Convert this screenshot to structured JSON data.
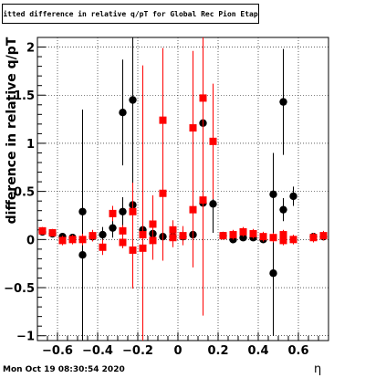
{
  "chart_data": {
    "type": "scatter",
    "title": "Fitted difference in relative q/pT for Global Rec Pion EtapT",
    "xlabel": "η",
    "ylabel": "difference in relative q/pT",
    "xlim": [
      -0.7,
      0.75
    ],
    "ylim": [
      -1.05,
      2.1
    ],
    "x_ticks": [
      -0.6,
      -0.4,
      -0.2,
      0,
      0.2,
      0.4,
      0.6
    ],
    "x_tick_labels": [
      "−0.6",
      "−0.4",
      "−0.2",
      "0",
      "0.2",
      "0.4",
      "0.6"
    ],
    "y_ticks": [
      -1,
      -0.5,
      0,
      0.5,
      1,
      1.5,
      2
    ],
    "y_tick_labels": [
      "−1",
      "−0.5",
      "0",
      "0.5",
      "1",
      "1.5",
      "2"
    ],
    "grid": true,
    "series": [
      {
        "color": "#000000",
        "marker": "circle",
        "points": [
          {
            "x": -0.675,
            "y": 0.08,
            "err": 0.03
          },
          {
            "x": -0.625,
            "y": 0.06,
            "err": 0.03
          },
          {
            "x": -0.575,
            "y": 0.03,
            "err": 0.03
          },
          {
            "x": -0.525,
            "y": 0.02,
            "err": 0.03
          },
          {
            "x": -0.475,
            "y": 0.29,
            "err": 1.06
          },
          {
            "x": -0.475,
            "y": -0.16,
            "err": 0.95
          },
          {
            "x": -0.425,
            "y": 0.03,
            "err": 0.05
          },
          {
            "x": -0.375,
            "y": 0.05,
            "err": 0.08
          },
          {
            "x": -0.325,
            "y": 0.12,
            "err": 0.1
          },
          {
            "x": -0.275,
            "y": 1.32,
            "err": 0.55
          },
          {
            "x": -0.275,
            "y": 0.29,
            "err": 0.15
          },
          {
            "x": -0.225,
            "y": 1.45,
            "err": 0.9
          },
          {
            "x": -0.225,
            "y": 0.36,
            "err": 0.3
          },
          {
            "x": -0.175,
            "y": 0.1,
            "err": 0.1
          },
          {
            "x": -0.125,
            "y": 0.06,
            "err": 0.05
          },
          {
            "x": -0.075,
            "y": 0.03,
            "err": 0.03
          },
          {
            "x": -0.025,
            "y": 0.03,
            "err": 0.04
          },
          {
            "x": 0.025,
            "y": 0.03,
            "err": 0.04
          },
          {
            "x": 0.075,
            "y": 0.05,
            "err": 0.05
          },
          {
            "x": 0.125,
            "y": 1.21,
            "err": 0.25
          },
          {
            "x": 0.125,
            "y": 0.38,
            "err": 0.35
          },
          {
            "x": 0.175,
            "y": 0.37,
            "err": 0.3
          },
          {
            "x": 0.225,
            "y": 0.04,
            "err": 0.03
          },
          {
            "x": 0.275,
            "y": 0.0,
            "err": 0.03
          },
          {
            "x": 0.325,
            "y": 0.02,
            "err": 0.03
          },
          {
            "x": 0.375,
            "y": 0.02,
            "err": 0.03
          },
          {
            "x": 0.425,
            "y": 0.0,
            "err": 0.03
          },
          {
            "x": 0.475,
            "y": 0.47,
            "err": 0.43
          },
          {
            "x": 0.475,
            "y": -0.35,
            "err": 0.65
          },
          {
            "x": 0.525,
            "y": 1.43,
            "err": 0.55
          },
          {
            "x": 0.525,
            "y": 0.31,
            "err": 0.12
          },
          {
            "x": 0.575,
            "y": 0.45,
            "err": 0.1
          },
          {
            "x": 0.675,
            "y": 0.03,
            "err": 0.03
          },
          {
            "x": 0.725,
            "y": 0.03,
            "err": 0.03
          }
        ]
      },
      {
        "color": "#ff0000",
        "marker": "square",
        "points": [
          {
            "x": -0.675,
            "y": 0.09,
            "err": 0.04
          },
          {
            "x": -0.625,
            "y": 0.07,
            "err": 0.04
          },
          {
            "x": -0.575,
            "y": -0.01,
            "err": 0.05
          },
          {
            "x": -0.525,
            "y": 0.0,
            "err": 0.05
          },
          {
            "x": -0.475,
            "y": 0.0,
            "err": 0.06
          },
          {
            "x": -0.425,
            "y": 0.04,
            "err": 0.06
          },
          {
            "x": -0.375,
            "y": -0.08,
            "err": 0.08
          },
          {
            "x": -0.325,
            "y": 0.27,
            "err": 0.08
          },
          {
            "x": -0.275,
            "y": 0.09,
            "err": 0.06
          },
          {
            "x": -0.275,
            "y": -0.03,
            "err": 0.06
          },
          {
            "x": -0.225,
            "y": -0.11,
            "err": 0.4
          },
          {
            "x": -0.225,
            "y": 0.29,
            "err": 0.3
          },
          {
            "x": -0.175,
            "y": -0.09,
            "err": 1.9
          },
          {
            "x": -0.175,
            "y": 0.05,
            "err": 0.15
          },
          {
            "x": -0.125,
            "y": 0.16,
            "err": 0.3
          },
          {
            "x": -0.125,
            "y": -0.01,
            "err": 0.2
          },
          {
            "x": -0.075,
            "y": 1.24,
            "err": 0.75
          },
          {
            "x": -0.075,
            "y": 0.48,
            "err": 0.7
          },
          {
            "x": -0.025,
            "y": 0.1,
            "err": 0.1
          },
          {
            "x": -0.025,
            "y": 0.02,
            "err": 0.1
          },
          {
            "x": 0.025,
            "y": 0.04,
            "err": 0.1
          },
          {
            "x": 0.075,
            "y": 0.31,
            "err": 0.6
          },
          {
            "x": 0.075,
            "y": 1.16,
            "err": 0.8
          },
          {
            "x": 0.125,
            "y": 1.47,
            "err": 0.8
          },
          {
            "x": 0.125,
            "y": 0.41,
            "err": 1.2
          },
          {
            "x": 0.175,
            "y": 1.02,
            "err": 0.6
          },
          {
            "x": 0.225,
            "y": 0.04,
            "err": 0.04
          },
          {
            "x": 0.275,
            "y": 0.05,
            "err": 0.05
          },
          {
            "x": 0.325,
            "y": 0.08,
            "err": 0.05
          },
          {
            "x": 0.375,
            "y": 0.06,
            "err": 0.05
          },
          {
            "x": 0.425,
            "y": 0.03,
            "err": 0.05
          },
          {
            "x": 0.475,
            "y": 0.02,
            "err": 0.05
          },
          {
            "x": 0.525,
            "y": 0.05,
            "err": 0.05
          },
          {
            "x": 0.525,
            "y": -0.01,
            "err": 0.05
          },
          {
            "x": 0.575,
            "y": 0.0,
            "err": 0.05
          },
          {
            "x": 0.675,
            "y": 0.02,
            "err": 0.05
          },
          {
            "x": 0.725,
            "y": 0.04,
            "err": 0.05
          }
        ]
      }
    ]
  },
  "footer": {
    "timestamp": "Mon Oct 19 08:30:54 2020"
  }
}
